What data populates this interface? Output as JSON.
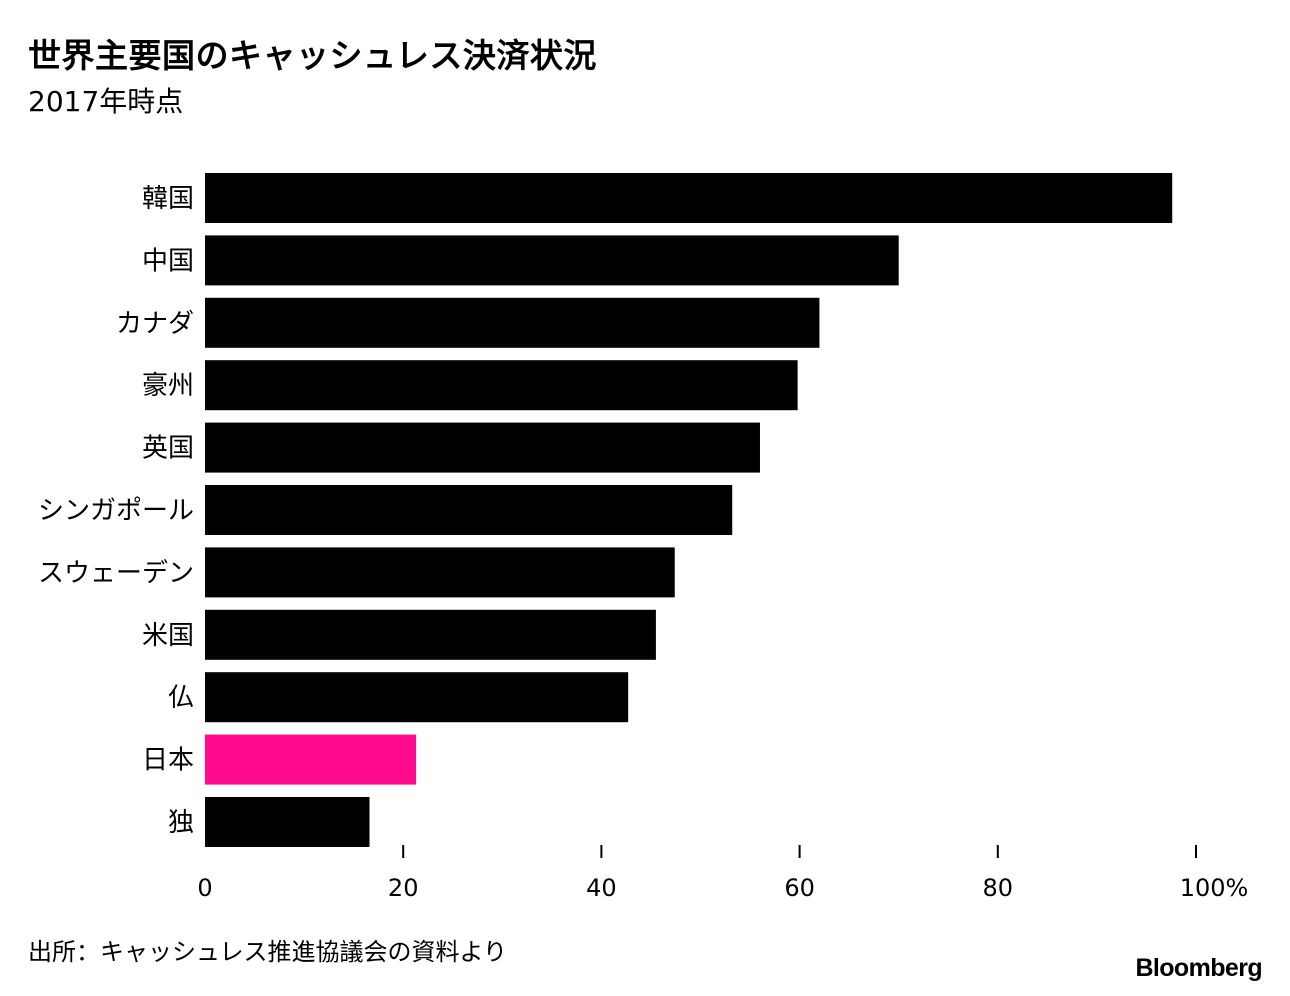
{
  "title": "世界主要国のキャッシュレス決済状況",
  "subtitle": "2017年時点",
  "source": "出所：キャッシュレス推進協議会の資料より",
  "brand": "Bloomberg",
  "colors": {
    "bar": "#000000",
    "highlight": "#ff0a8c",
    "text": "#000000",
    "background": "#ffffff"
  },
  "chart_data": {
    "type": "bar",
    "orientation": "horizontal",
    "categories": [
      "韓国",
      "中国",
      "カナダ",
      "豪州",
      "英国",
      "シンガポール",
      "スウェーデン",
      "米国",
      "仏",
      "日本",
      "独"
    ],
    "values": [
      97.6,
      70.0,
      62.0,
      59.8,
      56.0,
      53.2,
      47.4,
      45.5,
      42.7,
      21.3,
      16.6
    ],
    "highlight": "日本",
    "xlim": [
      0,
      100
    ],
    "xticks": [
      0,
      20,
      40,
      60,
      80,
      100
    ],
    "xtick_labels": [
      "0",
      "20",
      "40",
      "60",
      "80",
      "100%"
    ],
    "grid": false,
    "legend": "none"
  }
}
